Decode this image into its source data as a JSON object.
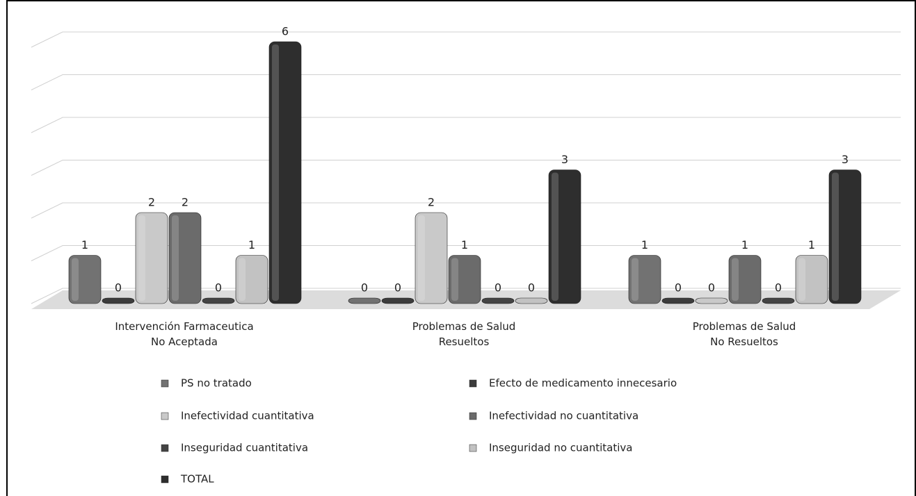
{
  "chart_data": {
    "type": "bar",
    "categories": [
      "Intervención Farmaceutica\nNo Aceptada",
      "Problemas de Salud\nResueltos",
      "Problemas de Salud\nNo Resueltos"
    ],
    "series": [
      {
        "name": "PS no tratado",
        "color": "#727272",
        "values": [
          1,
          0,
          1
        ]
      },
      {
        "name": "Efecto de medicamento innecesario",
        "color": "#3c3c3c",
        "values": [
          0,
          0,
          0
        ]
      },
      {
        "name": "Inefectividad cuantitativa",
        "color": "#c9c9c9",
        "values": [
          2,
          2,
          0
        ]
      },
      {
        "name": "Inefectividad no cuantitativa",
        "color": "#6b6b6b",
        "values": [
          2,
          1,
          1
        ]
      },
      {
        "name": "Inseguridad cuantitativa",
        "color": "#444444",
        "values": [
          0,
          0,
          0
        ]
      },
      {
        "name": "Inseguridad no cuantitativa",
        "color": "#c2c2c2",
        "values": [
          1,
          0,
          1
        ]
      },
      {
        "name": "TOTAL",
        "color": "#2e2e2e",
        "values": [
          6,
          3,
          3
        ]
      }
    ],
    "ylim": [
      0,
      6
    ],
    "yticks": [
      0,
      1,
      2,
      3,
      4,
      5,
      6
    ],
    "grid": true
  }
}
